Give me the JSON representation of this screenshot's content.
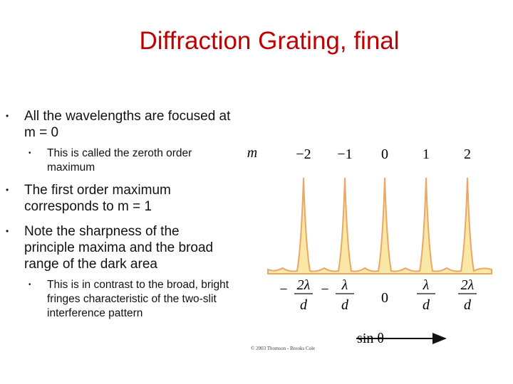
{
  "title": "Diffraction Grating, final",
  "bullets": [
    {
      "text": "All the wavelengths are focused at m = 0",
      "sub": [
        "This is called the zeroth order maximum"
      ]
    },
    {
      "text": "The first order maximum corresponds to m = 1"
    },
    {
      "text": "Note the sharpness of the principle maxima and the broad range of the dark area",
      "sub": [
        "This is in contrast to the broad, bright fringes characteristic of the two-slit interference pattern"
      ]
    }
  ],
  "figure": {
    "order_label": "m",
    "orders": [
      "−2",
      "−1",
      "0",
      "1",
      "2"
    ],
    "position_labels": [
      {
        "sign": "−",
        "numerator": "2λ",
        "denominator": "d"
      },
      {
        "sign": "−",
        "numerator": "λ",
        "denominator": "d"
      },
      {
        "text": "0"
      },
      {
        "numerator": "λ",
        "denominator": "d"
      },
      {
        "numerator": "2λ",
        "denominator": "d"
      }
    ],
    "axis_label": "sin θ",
    "credit": "© 2003 Thomson - Brooks Cole"
  }
}
